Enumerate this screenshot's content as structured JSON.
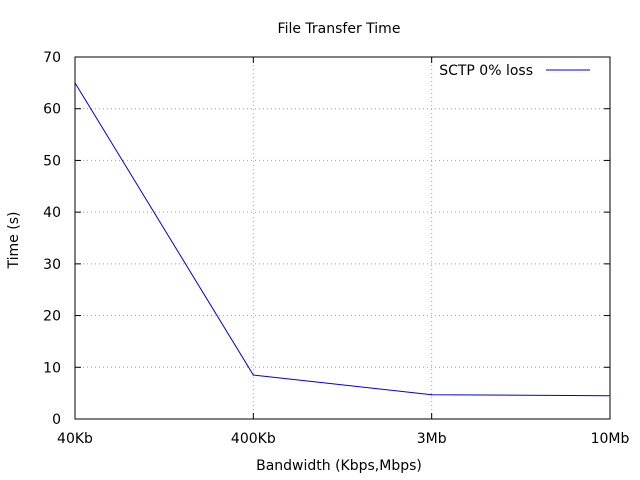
{
  "chart_data": {
    "type": "line",
    "title": "File Transfer Time",
    "xlabel": "Bandwidth (Kbps,Mbps)",
    "ylabel": "Time (s)",
    "categories": [
      "40Kb",
      "400Kb",
      "3Mb",
      "10Mb"
    ],
    "series": [
      {
        "name": "SCTP 0% loss",
        "values": [
          65,
          8.5,
          4.7,
          4.5
        ],
        "color": "#0000cc"
      }
    ],
    "ylim": [
      0,
      70
    ],
    "yticks": [
      "0",
      "10",
      "20",
      "30",
      "40",
      "50",
      "60",
      "70"
    ],
    "grid": true,
    "legend_position": "top-right"
  }
}
